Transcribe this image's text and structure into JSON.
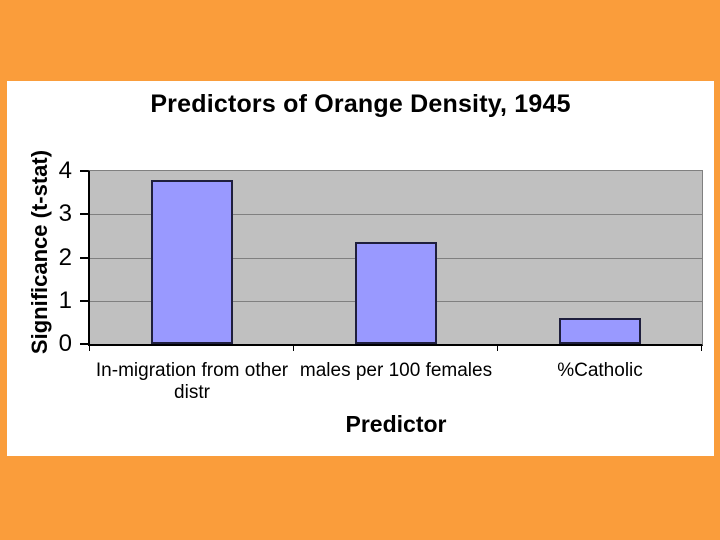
{
  "slide": {
    "title": "Predictors of Orange Density, 1945"
  },
  "chart_data": {
    "type": "bar",
    "title": "Predictors of Orange Density, 1945",
    "xlabel": "Predictor",
    "ylabel": "Significance (t-stat)",
    "categories": [
      "In-migration from other distr",
      "males per 100 females",
      "%Catholic"
    ],
    "values": [
      3.8,
      2.35,
      0.6
    ],
    "ylim": [
      0,
      4
    ],
    "yticks": [
      0,
      1,
      2,
      3,
      4
    ],
    "grid": true,
    "legend": false,
    "plot_background": "#C0C0C0"
  },
  "colors": {
    "background_orange": "#FA9D3B",
    "slide_white": "#FFFFFF",
    "plot_area_gray": "#C0C0C0",
    "gridline_gray": "#808080",
    "bar_fill": "#9999FF",
    "bar_border": "#1F1F3D",
    "axis_black": "#000000",
    "text_black": "#000000"
  }
}
